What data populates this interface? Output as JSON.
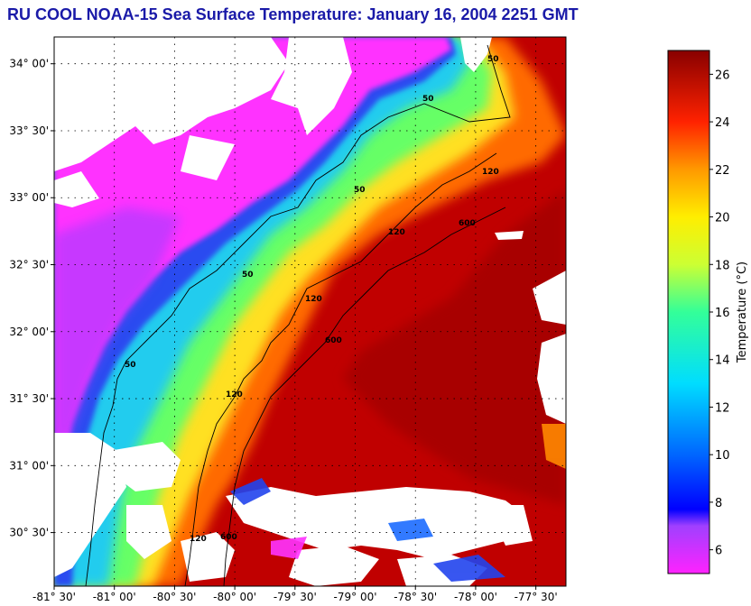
{
  "title": "RU COOL  NOAA-15  Sea Surface Temperature:  January 16, 2004 2251 GMT",
  "map": {
    "lat_range": [
      30.1,
      34.2
    ],
    "lon_range": [
      -81.5,
      -77.25
    ],
    "lat_labels": [
      {
        "value": 34.0,
        "text": "34° 00'"
      },
      {
        "value": 33.5,
        "text": "33° 30'"
      },
      {
        "value": 33.0,
        "text": "33° 00'"
      },
      {
        "value": 32.5,
        "text": "32° 30'"
      },
      {
        "value": 32.0,
        "text": "32° 00'"
      },
      {
        "value": 31.5,
        "text": "31° 30'"
      },
      {
        "value": 31.0,
        "text": "31° 00'"
      },
      {
        "value": 30.5,
        "text": "30° 30'"
      }
    ],
    "lon_labels": [
      {
        "value": -81.5,
        "text": "-81° 30'"
      },
      {
        "value": -81.0,
        "text": "-81° 00'"
      },
      {
        "value": -80.5,
        "text": "-80° 30'"
      },
      {
        "value": -80.0,
        "text": "-80° 00'"
      },
      {
        "value": -79.5,
        "text": "-79° 30'"
      },
      {
        "value": -79.0,
        "text": "-79° 00'"
      },
      {
        "value": -78.5,
        "text": "-78° 30'"
      },
      {
        "value": -78.0,
        "text": "-78° 00'"
      },
      {
        "value": -77.5,
        "text": "-77° 30'"
      }
    ],
    "contour_labels": [
      "50",
      "120",
      "600"
    ],
    "colors": {
      "land": "#ff33ff",
      "cloud": "#ffffff",
      "coast_cold": "#2244ee",
      "shelf": "#22ccee",
      "mid_shelf": "#ffee22",
      "slope": "#ff7700",
      "gulf_stream": "#c80000"
    }
  },
  "colorbar": {
    "title": "Temperature (°C)",
    "range": [
      5,
      27
    ],
    "ticks": [
      {
        "value": 6,
        "text": "6"
      },
      {
        "value": 8,
        "text": "8"
      },
      {
        "value": 10,
        "text": "10"
      },
      {
        "value": 12,
        "text": "12"
      },
      {
        "value": 14,
        "text": "14"
      },
      {
        "value": 16,
        "text": "16"
      },
      {
        "value": 18,
        "text": "18"
      },
      {
        "value": 20,
        "text": "20"
      },
      {
        "value": 22,
        "text": "22"
      },
      {
        "value": 24,
        "text": "24"
      },
      {
        "value": 26,
        "text": "26"
      }
    ],
    "stops": [
      {
        "value": 5,
        "color": "#ff22ff"
      },
      {
        "value": 7,
        "color": "#a040ff"
      },
      {
        "value": 7.7,
        "color": "#0000ff"
      },
      {
        "value": 10,
        "color": "#0066ff"
      },
      {
        "value": 13,
        "color": "#00ddff"
      },
      {
        "value": 16,
        "color": "#33ff99"
      },
      {
        "value": 18,
        "color": "#ccff33"
      },
      {
        "value": 20,
        "color": "#ffee00"
      },
      {
        "value": 22,
        "color": "#ff9900"
      },
      {
        "value": 24,
        "color": "#ff2200"
      },
      {
        "value": 27,
        "color": "#880000"
      }
    ]
  }
}
